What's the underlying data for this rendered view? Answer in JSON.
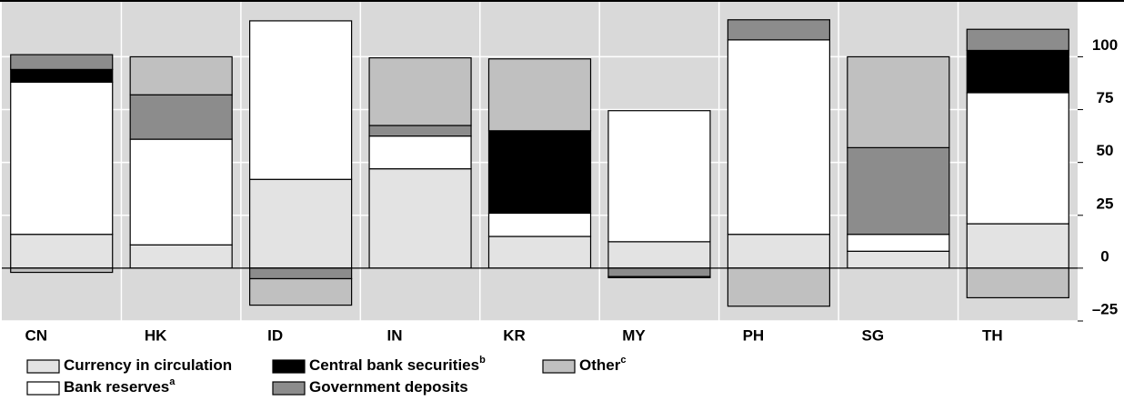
{
  "chart_data": {
    "type": "stacked_bar",
    "categories": [
      "CN",
      "HK",
      "ID",
      "IN",
      "KR",
      "MY",
      "PH",
      "SG",
      "TH"
    ],
    "series": [
      {
        "name": "Currency in circulation",
        "color": "#e3e3e3",
        "values": [
          16,
          11,
          42,
          47,
          15,
          12.5,
          16,
          8,
          21
        ]
      },
      {
        "name": "Bank reserves",
        "superscript": "a",
        "color": "#ffffff",
        "values": [
          72,
          50,
          75,
          15.5,
          11,
          62,
          92,
          8,
          62
        ]
      },
      {
        "name": "Central bank securities",
        "superscript": "b",
        "color": "#000000",
        "values": [
          6,
          0,
          0,
          0,
          39,
          0,
          0,
          0,
          20
        ]
      },
      {
        "name": "Government deposits",
        "color": "#8c8c8c",
        "values": [
          7,
          21,
          -5,
          5,
          0,
          -4,
          9.5,
          41,
          10
        ]
      },
      {
        "name": "Other",
        "superscript": "c",
        "color": "#c0c0c0",
        "values": [
          -2,
          18,
          -12.5,
          32,
          34,
          -0.5,
          -18,
          43,
          -14
        ]
      }
    ],
    "ylim": [
      -25,
      126
    ],
    "yticks": [
      -25,
      0,
      25,
      50,
      75,
      100
    ],
    "yticks_labels": [
      {
        "value": -25,
        "label": "–25"
      }
    ],
    "grid": true,
    "y_axis_side": "right"
  }
}
